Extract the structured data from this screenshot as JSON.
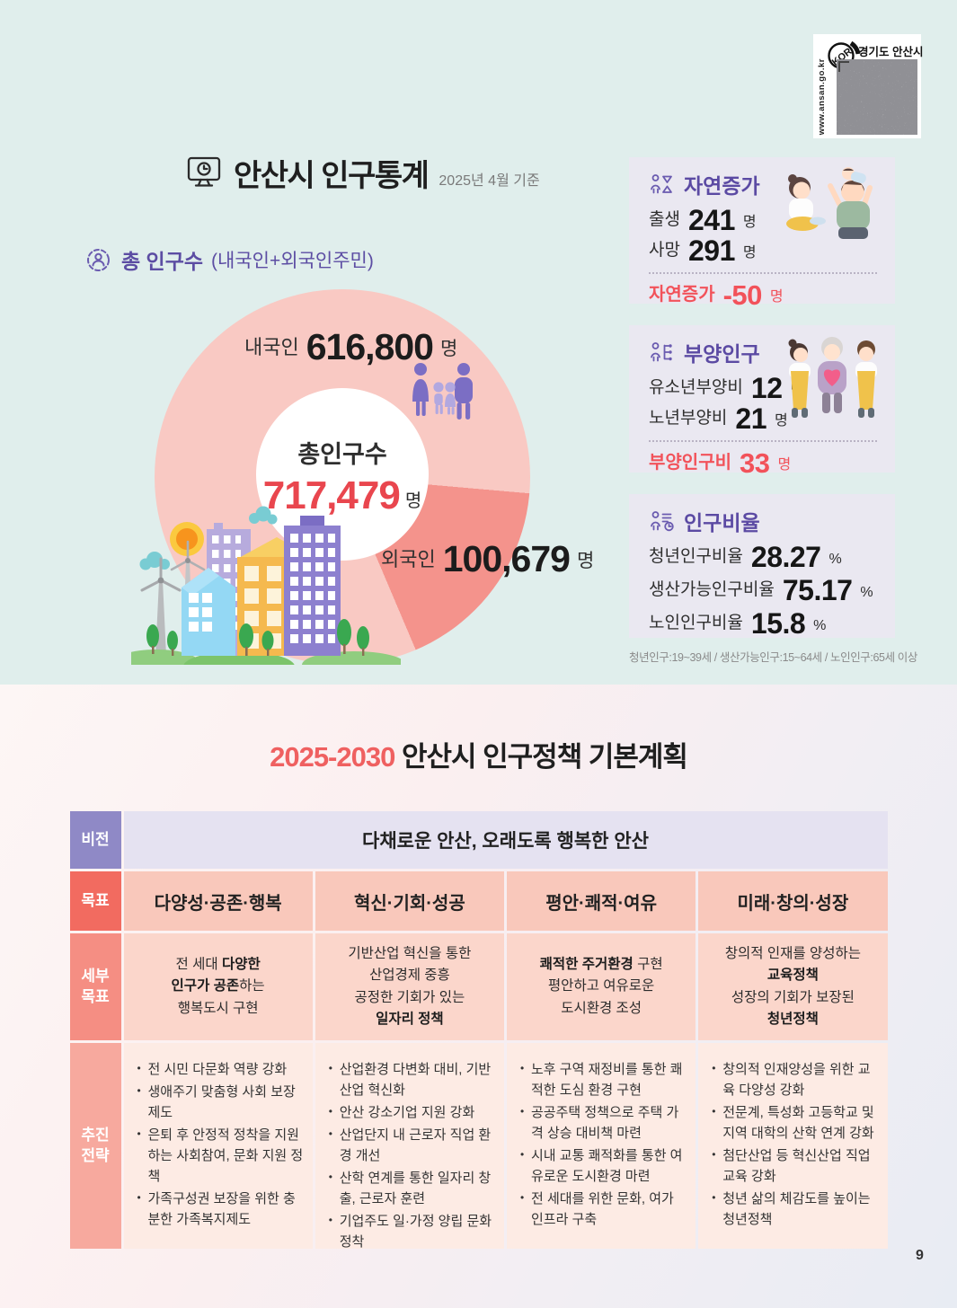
{
  "stamp": {
    "kor": "KOR",
    "region": "경기도 안산시",
    "url": "www.ansan.go.kr"
  },
  "header": {
    "title": "안산시 인구통계",
    "date_note": "2025년 4월 기준"
  },
  "population": {
    "heading": "총 인구수",
    "heading_note": "(내국인+외국인주민)",
    "center_label": "총인구수",
    "center_value": "717,479",
    "center_unit": "명",
    "korean_label": "내국인",
    "korean_value": "616,800",
    "korean_unit": "명",
    "foreign_label": "외국인",
    "foreign_value": "100,679",
    "foreign_unit": "명"
  },
  "chart_data": {
    "type": "pie",
    "style": "donut",
    "title": "총 인구수 (내국인+외국인주민)",
    "slices": [
      {
        "label": "내국인",
        "value": 616800,
        "color": "#f9c9c3"
      },
      {
        "label": "외국인",
        "value": 100679,
        "color": "#f4938c"
      }
    ],
    "center_total": {
      "label": "총인구수",
      "value": 717479,
      "unit": "명"
    }
  },
  "stat_boxes": [
    {
      "title": "자연증가",
      "icon": "person-hourglass-icon",
      "rows": [
        {
          "label": "출생",
          "value": "241",
          "unit": "명"
        },
        {
          "label": "사망",
          "value": "291",
          "unit": "명"
        }
      ],
      "highlight": {
        "label": "자연증가",
        "value": "-50",
        "unit": "명"
      }
    },
    {
      "title": "부양인구",
      "icon": "person-tree-icon",
      "rows": [
        {
          "label": "유소년부양비",
          "value": "12",
          "unit": "명"
        },
        {
          "label": "노년부양비",
          "value": "21",
          "unit": "명"
        }
      ],
      "highlight": {
        "label": "부양인구비",
        "value": "33",
        "unit": "명"
      }
    },
    {
      "title": "인구비율",
      "icon": "person-clock-icon",
      "rows": [
        {
          "label": "청년인구비율",
          "value": "28.27",
          "unit": "%"
        },
        {
          "label": "생산가능인구비율",
          "value": "75.17",
          "unit": "%"
        },
        {
          "label": "노인인구비율",
          "value": "15.8",
          "unit": "%"
        }
      ],
      "highlight": null
    }
  ],
  "footnote": "청년인구:19~39세 / 생산가능인구:15~64세 / 노인인구:65세 이상",
  "plan": {
    "title_highlight": "2025-2030",
    "title_rest": " 안산시 인구정책 기본계획",
    "vision": {
      "label": "비전",
      "text": "다채로운 안산, 오래도록 행복한 안산"
    },
    "goals": {
      "label": "목표",
      "items": [
        "다양성·공존·행복",
        "혁신·기회·성공",
        "평안·쾌적·여유",
        "미래·창의·성장"
      ]
    },
    "details": {
      "label": "세부\n목표",
      "cells": [
        [
          [
            {
              "t": "전 세대 "
            },
            {
              "t": "다양한",
              "b": true
            }
          ],
          [
            {
              "t": "인구가 공존",
              "b": true
            },
            {
              "t": "하는"
            }
          ],
          [
            {
              "t": "행복도시 구현"
            }
          ]
        ],
        [
          [
            {
              "t": "기반산업 혁신을 통한"
            }
          ],
          [
            {
              "t": "산업경제 중흥"
            }
          ],
          [
            {
              "t": "공정한 기회가 있는"
            }
          ],
          [
            {
              "t": "일자리 정책",
              "b": true
            }
          ]
        ],
        [
          [
            {
              "t": "쾌적한 주거환경",
              "b": true
            },
            {
              "t": " 구현"
            }
          ],
          [
            {
              "t": "평안하고 여유로운"
            }
          ],
          [
            {
              "t": "도시환경 조성"
            }
          ]
        ],
        [
          [
            {
              "t": "창의적 인재를 양성하는"
            }
          ],
          [
            {
              "t": "교육정책",
              "b": true
            }
          ],
          [
            {
              "t": "성장의 기회가 보장된"
            }
          ],
          [
            {
              "t": "청년정책",
              "b": true
            }
          ]
        ]
      ]
    },
    "strategies": {
      "label": "추진\n전략",
      "columns": [
        [
          "전 시민 다문화 역량 강화",
          "생애주기 맞춤형 사회 보장제도",
          "은퇴 후 안정적 정착을 지원하는 사회참여, 문화 지원 정책",
          "가족구성권 보장을 위한 충분한 가족복지제도"
        ],
        [
          "산업환경 다변화 대비, 기반 산업 혁신화",
          "안산 강소기업 지원 강화",
          "산업단지 내 근로자 직업 환경 개선",
          "산학 연계를 통한 일자리 창출, 근로자 훈련",
          "기업주도 일·가정 양립 문화 정착"
        ],
        [
          "노후 구역 재정비를 통한 쾌적한 도심 환경 구현",
          "공공주택 정책으로 주택 가격 상승 대비책 마련",
          "시내 교통 쾌적화를 통한 여유로운 도시환경 마련",
          "전 세대를 위한 문화, 여가 인프라 구축"
        ],
        [
          "창의적 인재양성을 위한 교육 다양성 강화",
          "전문계, 특성화 고등학교 및 지역 대학의 산학 연계 강화",
          "첨단산업 등 혁신산업 직업교육 강화",
          "청년 삶의 체감도를 높이는 청년정책"
        ]
      ]
    }
  },
  "page_number": "9",
  "colors": {
    "mint_bg": "#e0eeec",
    "box_bg": "#eae8f1",
    "purple": "#5c4da3",
    "red_value": "#e9464e",
    "highlight_red": "#f2525a",
    "donut_major": "#f9c9c3",
    "donut_minor": "#f4938c",
    "title_accent": "#ef6060",
    "vision_label": "#8f89c6",
    "vision_bg": "#e5e2f1",
    "goal_label": "#f26b60",
    "goal_bg": "#f9c8bb",
    "detail_label": "#f58e83",
    "detail_bg": "#fbd6cb",
    "strategy_label": "#f7a99e",
    "strategy_bg": "#fdebe4"
  }
}
